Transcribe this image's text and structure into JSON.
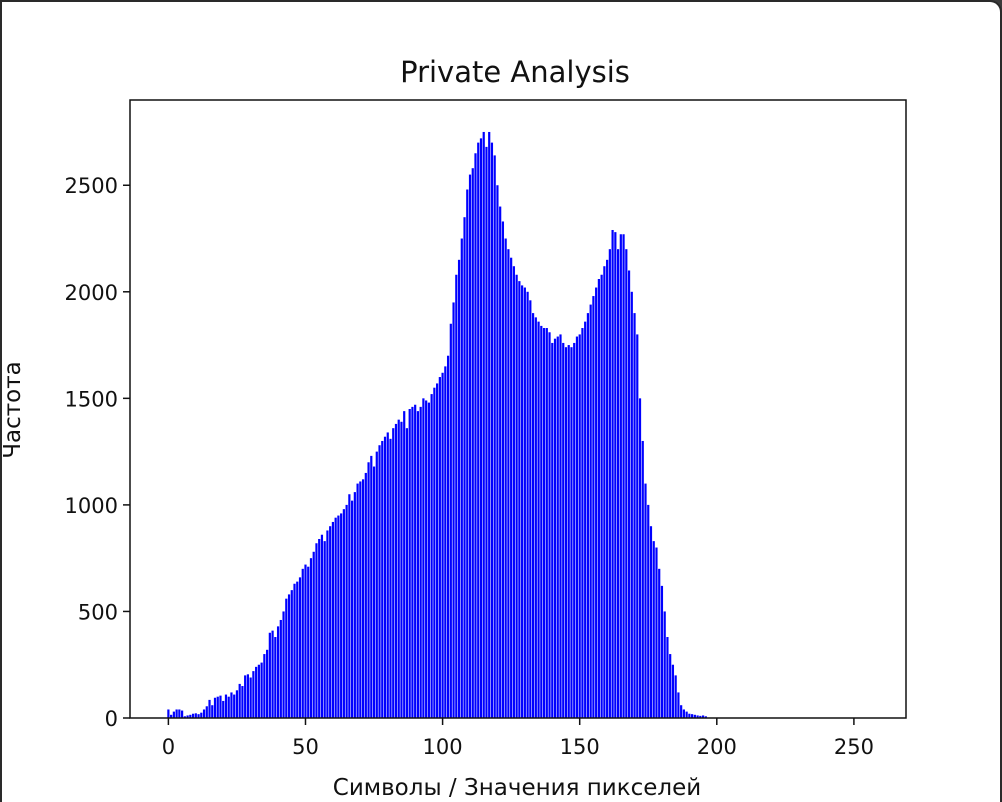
{
  "chart_data": {
    "type": "bar",
    "title": "Private Analysis",
    "xlabel": "Символы / Значения пикселей",
    "ylabel": "Частота",
    "bar_color": "#0000ff",
    "xlim": [
      -14,
      269
    ],
    "ylim": [
      0,
      2900
    ],
    "xticks": [
      0,
      50,
      100,
      150,
      200,
      250
    ],
    "yticks": [
      0,
      500,
      1000,
      1500,
      2000,
      2500
    ],
    "x_start": 0,
    "values": [
      40,
      15,
      30,
      40,
      40,
      35,
      8,
      12,
      15,
      20,
      22,
      18,
      25,
      40,
      55,
      85,
      60,
      95,
      100,
      105,
      80,
      110,
      100,
      120,
      110,
      130,
      160,
      150,
      200,
      205,
      190,
      220,
      240,
      250,
      260,
      300,
      320,
      400,
      410,
      380,
      430,
      460,
      500,
      560,
      580,
      600,
      630,
      640,
      660,
      700,
      720,
      710,
      750,
      780,
      820,
      840,
      860,
      830,
      880,
      900,
      920,
      940,
      950,
      960,
      980,
      1000,
      1050,
      1020,
      1060,
      1100,
      1110,
      1120,
      1150,
      1200,
      1230,
      1180,
      1250,
      1280,
      1300,
      1320,
      1340,
      1310,
      1360,
      1380,
      1400,
      1390,
      1440,
      1360,
      1450,
      1460,
      1470,
      1440,
      1460,
      1500,
      1490,
      1480,
      1520,
      1550,
      1570,
      1600,
      1620,
      1650,
      1700,
      1850,
      1950,
      2080,
      2150,
      2250,
      2350,
      2480,
      2550,
      2580,
      2650,
      2700,
      2720,
      2750,
      2680,
      2750,
      2700,
      2640,
      2500,
      2400,
      2330,
      2250,
      2200,
      2160,
      2120,
      2080,
      2050,
      2030,
      2020,
      2000,
      1960,
      1900,
      1880,
      1860,
      1840,
      1830,
      1830,
      1810,
      1760,
      1780,
      1790,
      1800,
      1760,
      1740,
      1750,
      1740,
      1760,
      1790,
      1800,
      1830,
      1860,
      1900,
      1940,
      1980,
      2020,
      2060,
      2080,
      2120,
      2150,
      2200,
      2290,
      2280,
      2200,
      2270,
      2270,
      2200,
      2100,
      2000,
      1900,
      1800,
      1500,
      1300,
      1100,
      1000,
      900,
      830,
      800,
      700,
      620,
      500,
      380,
      300,
      250,
      200,
      120,
      60,
      40,
      30,
      20,
      18,
      15,
      12,
      10,
      12,
      8
    ]
  }
}
